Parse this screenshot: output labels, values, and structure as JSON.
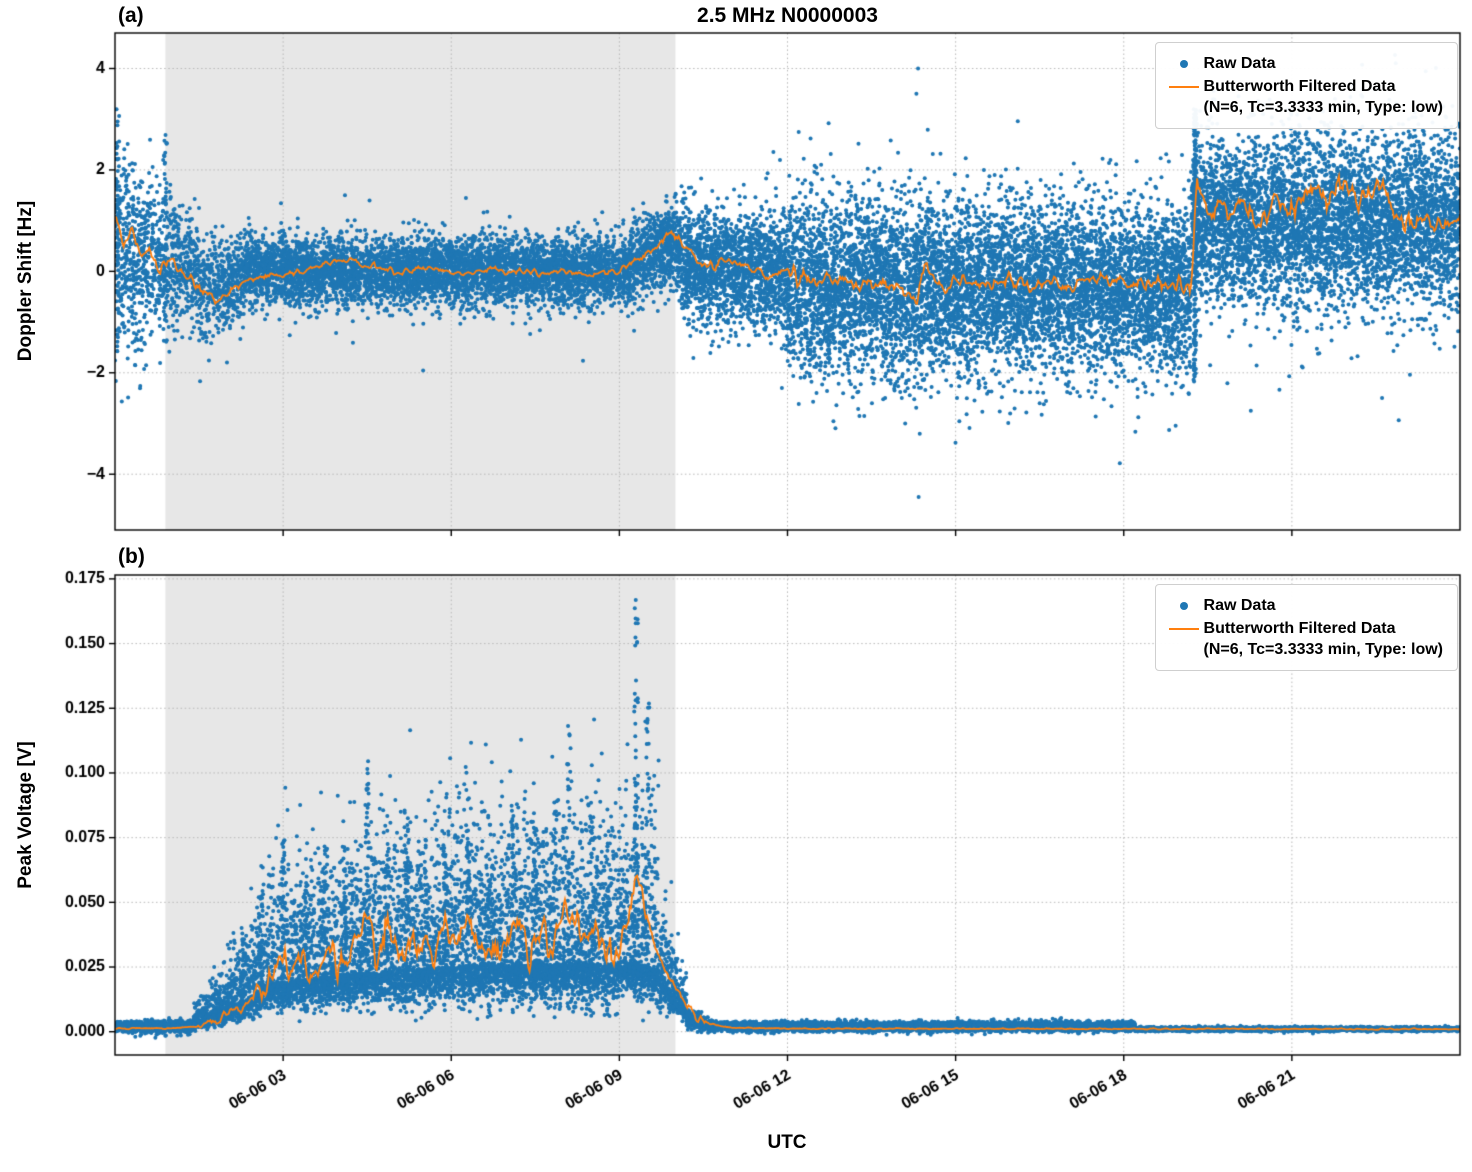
{
  "figure": {
    "xlabel": "UTC",
    "background": "#ffffff"
  },
  "chart_data": [
    {
      "type": "scatter",
      "panel_label": "(a)",
      "title": "2.5 MHz N0000003",
      "ylabel": "Doppler Shift [Hz]",
      "ylim": [
        -5.1,
        4.7
      ],
      "yticks": [
        -4,
        -2,
        0,
        2,
        4
      ],
      "ytick_labels": [
        "−4",
        "−2",
        "0",
        "2",
        "4"
      ],
      "xlim": [
        0,
        24
      ],
      "x_unit": "hours after 06-06 00:00 UTC",
      "xticks": [
        {
          "h": 3,
          "label": "06-06 03"
        },
        {
          "h": 6,
          "label": "06-06 06"
        },
        {
          "h": 9,
          "label": "06-06 09"
        },
        {
          "h": 12,
          "label": "06-06 12"
        },
        {
          "h": 15,
          "label": "06-06 15"
        },
        {
          "h": 18,
          "label": "06-06 18"
        },
        {
          "h": 21,
          "label": "06-06 21"
        }
      ],
      "show_xtick_labels": false,
      "grid": "dotted",
      "legend_position": "upper right",
      "legend": {
        "raw": "Raw Data",
        "filtered_1": "Butterworth Filtered Data",
        "filtered_2": "(N=6, Tc=3.3333 min, Type: low)"
      },
      "colors": {
        "raw": "#1f77b4",
        "filtered": "#ff7f0e"
      },
      "shaded_region": {
        "from_h": 0.9,
        "to_h": 10.0,
        "color": "#e7e7e7"
      },
      "tail_fraction": 0.03,
      "tail_mult": 2.1,
      "raw_segments": [
        {
          "from": 0.0,
          "to": 0.7,
          "c0": 0.4,
          "c1": 0.2,
          "s0": 1.05,
          "s1": 0.8,
          "density": 650
        },
        {
          "from": 0.7,
          "to": 1.5,
          "c0": 0.2,
          "c1": -0.1,
          "s0": 0.75,
          "s1": 0.55,
          "density": 550
        },
        {
          "from": 1.5,
          "to": 2.3,
          "c0": -0.35,
          "c1": -0.2,
          "s0": 0.5,
          "s1": 0.4,
          "density": 550
        },
        {
          "from": 2.3,
          "to": 9.2,
          "c0": 0.0,
          "c1": 0.0,
          "s0": 0.33,
          "s1": 0.33,
          "density": 800
        },
        {
          "from": 9.2,
          "to": 10.1,
          "c0": 0.25,
          "c1": 0.55,
          "s0": 0.38,
          "s1": 0.42,
          "density": 800
        },
        {
          "from": 10.1,
          "to": 12.0,
          "c0": 0.15,
          "c1": -0.05,
          "s0": 0.55,
          "s1": 0.6,
          "density": 900
        },
        {
          "from": 12.0,
          "to": 19.2,
          "c0": -0.3,
          "c1": -0.35,
          "s0": 0.85,
          "s1": 0.8,
          "density": 1050
        },
        {
          "from": 19.2,
          "to": 24.0,
          "c0": 1.05,
          "c1": 0.95,
          "s0": 0.8,
          "s1": 0.85,
          "density": 1050
        }
      ],
      "columns": [
        {
          "h": 19.27,
          "y0": -2.3,
          "y1": 3.2,
          "n": 160
        },
        {
          "h": 0.05,
          "y0": -1.4,
          "y1": 3.25,
          "n": 60
        },
        {
          "h": 0.9,
          "y0": -1.0,
          "y1": 2.7,
          "n": 40
        }
      ],
      "outliers": [
        [
          14.33,
          4.0
        ],
        [
          14.3,
          3.5
        ],
        [
          14.36,
          -3.2
        ],
        [
          14.34,
          -4.45
        ],
        [
          13.37,
          -2.85
        ],
        [
          12.2,
          2.75
        ],
        [
          11.9,
          -2.3
        ],
        [
          16.5,
          -2.6
        ],
        [
          15.2,
          -2.5
        ],
        [
          14.1,
          -3.0
        ],
        [
          12.6,
          2.1
        ]
      ],
      "filtered_keypoints": [
        [
          0,
          1.2
        ],
        [
          0.15,
          0.55
        ],
        [
          0.3,
          0.85
        ],
        [
          0.45,
          0.3
        ],
        [
          0.6,
          0.45
        ],
        [
          0.8,
          0.05
        ],
        [
          1.0,
          0.3
        ],
        [
          1.2,
          -0.05
        ],
        [
          1.5,
          -0.3
        ],
        [
          1.8,
          -0.55
        ],
        [
          2.0,
          -0.45
        ],
        [
          2.3,
          -0.2
        ],
        [
          2.7,
          -0.1
        ],
        [
          3.2,
          0.0
        ],
        [
          3.7,
          0.1
        ],
        [
          4.2,
          0.25
        ],
        [
          4.5,
          0.1
        ],
        [
          5.0,
          0.0
        ],
        [
          5.6,
          0.05
        ],
        [
          6.2,
          -0.05
        ],
        [
          6.8,
          0.02
        ],
        [
          7.4,
          -0.05
        ],
        [
          8.0,
          0.0
        ],
        [
          8.5,
          -0.08
        ],
        [
          9.0,
          0.0
        ],
        [
          9.4,
          0.3
        ],
        [
          9.7,
          0.55
        ],
        [
          9.95,
          0.8
        ],
        [
          10.15,
          0.5
        ],
        [
          10.4,
          0.2
        ],
        [
          10.7,
          0.1
        ],
        [
          11.0,
          0.25
        ],
        [
          11.3,
          0.05
        ],
        [
          11.7,
          -0.1
        ],
        [
          12.0,
          0.05
        ],
        [
          12.4,
          -0.25
        ],
        [
          12.8,
          -0.1
        ],
        [
          13.2,
          -0.3
        ],
        [
          13.6,
          -0.15
        ],
        [
          14.0,
          -0.35
        ],
        [
          14.3,
          -0.6
        ],
        [
          14.5,
          0.15
        ],
        [
          14.7,
          -0.45
        ],
        [
          15.0,
          -0.2
        ],
        [
          15.4,
          -0.3
        ],
        [
          15.8,
          -0.15
        ],
        [
          16.2,
          -0.3
        ],
        [
          16.6,
          -0.2
        ],
        [
          17.0,
          -0.3
        ],
        [
          17.4,
          -0.15
        ],
        [
          17.8,
          -0.25
        ],
        [
          18.2,
          -0.2
        ],
        [
          18.6,
          -0.25
        ],
        [
          19.0,
          -0.2
        ],
        [
          19.2,
          -0.5
        ],
        [
          19.3,
          1.9
        ],
        [
          19.5,
          1.0
        ],
        [
          19.7,
          1.5
        ],
        [
          19.9,
          1.05
        ],
        [
          20.1,
          1.35
        ],
        [
          20.4,
          0.95
        ],
        [
          20.7,
          1.5
        ],
        [
          21.0,
          1.15
        ],
        [
          21.3,
          1.65
        ],
        [
          21.6,
          1.35
        ],
        [
          21.9,
          1.75
        ],
        [
          22.2,
          1.35
        ],
        [
          22.5,
          1.8
        ],
        [
          22.8,
          1.25
        ],
        [
          23.1,
          0.9
        ],
        [
          23.4,
          1.15
        ],
        [
          23.7,
          0.85
        ],
        [
          24,
          1.0
        ]
      ],
      "filtered_wiggle": [
        {
          "from": 0,
          "to": 2.3,
          "amp": 0.1
        },
        {
          "from": 2.3,
          "to": 9.2,
          "amp": 0.05
        },
        {
          "from": 9.2,
          "to": 12,
          "amp": 0.08
        },
        {
          "from": 12,
          "to": 19.2,
          "amp": 0.13
        },
        {
          "from": 19.2,
          "to": 24,
          "amp": 0.2
        }
      ]
    },
    {
      "type": "scatter",
      "panel_label": "(b)",
      "ylabel": "Peak Voltage [V]",
      "ylim": [
        -0.009,
        0.1765
      ],
      "yticks": [
        0,
        0.025,
        0.05,
        0.075,
        0.1,
        0.125,
        0.15,
        0.175
      ],
      "ytick_labels": [
        "0.000",
        "0.025",
        "0.050",
        "0.075",
        "0.100",
        "0.125",
        "0.150",
        "0.175"
      ],
      "xlim": [
        0,
        24
      ],
      "x_unit": "hours after 06-06 00:00 UTC",
      "xticks": [
        {
          "h": 3,
          "label": "06-06 03"
        },
        {
          "h": 6,
          "label": "06-06 06"
        },
        {
          "h": 9,
          "label": "06-06 09"
        },
        {
          "h": 12,
          "label": "06-06 12"
        },
        {
          "h": 15,
          "label": "06-06 15"
        },
        {
          "h": 18,
          "label": "06-06 18"
        },
        {
          "h": 21,
          "label": "06-06 21"
        }
      ],
      "show_xtick_labels": true,
      "grid": "dotted",
      "legend_position": "upper right",
      "legend": {
        "raw": "Raw Data",
        "filtered_1": "Butterworth Filtered Data",
        "filtered_2": "(N=6, Tc=3.3333 min, Type: low)"
      },
      "colors": {
        "raw": "#1f77b4",
        "filtered": "#ff7f0e"
      },
      "shaded_region": {
        "from_h": 0.9,
        "to_h": 10.0,
        "color": "#e7e7e7"
      },
      "tail_fraction": 0.0,
      "tail_mult": 1.0,
      "raw_segments": [
        {
          "from": 0.0,
          "to": 1.4,
          "c0": 0.002,
          "c1": 0.002,
          "s0": 0.001,
          "s1": 0.0012,
          "density": 600
        },
        {
          "from": 1.4,
          "to": 2.0,
          "c0": 0.003,
          "c1": 0.008,
          "s0": 0.0015,
          "s1": 0.004,
          "density": 700,
          "pos": 2.0,
          "neg": 0.6
        },
        {
          "from": 2.0,
          "to": 2.6,
          "c0": 0.008,
          "c1": 0.016,
          "s0": 0.004,
          "s1": 0.008,
          "density": 800,
          "pos": 2.2,
          "neg": 0.6
        },
        {
          "from": 2.6,
          "to": 4.0,
          "c0": 0.018,
          "c1": 0.022,
          "s0": 0.008,
          "s1": 0.01,
          "density": 900,
          "pos": 2.4,
          "neg": 0.55
        },
        {
          "from": 4.0,
          "to": 6.5,
          "c0": 0.022,
          "c1": 0.026,
          "s0": 0.01,
          "s1": 0.012,
          "density": 950,
          "pos": 2.4,
          "neg": 0.55
        },
        {
          "from": 6.5,
          "to": 9.0,
          "c0": 0.026,
          "c1": 0.026,
          "s0": 0.011,
          "s1": 0.012,
          "density": 950,
          "pos": 2.4,
          "neg": 0.55
        },
        {
          "from": 9.0,
          "to": 9.7,
          "c0": 0.028,
          "c1": 0.024,
          "s0": 0.012,
          "s1": 0.012,
          "density": 900,
          "pos": 2.6,
          "neg": 0.5
        },
        {
          "from": 9.7,
          "to": 10.2,
          "c0": 0.02,
          "c1": 0.007,
          "s0": 0.008,
          "s1": 0.003,
          "density": 800,
          "pos": 2.0,
          "neg": 0.5
        },
        {
          "from": 10.2,
          "to": 10.7,
          "c0": 0.005,
          "c1": 0.002,
          "s0": 0.002,
          "s1": 0.001,
          "density": 700
        },
        {
          "from": 10.7,
          "to": 18.2,
          "c0": 0.002,
          "c1": 0.002,
          "s0": 0.0009,
          "s1": 0.0009,
          "density": 650
        },
        {
          "from": 18.2,
          "to": 24.0,
          "c0": 0.001,
          "c1": 0.001,
          "s0": 0.0004,
          "s1": 0.0004,
          "density": 500
        }
      ],
      "plumes": [
        {
          "h": 2.3,
          "top": 0.04,
          "n": 20
        },
        {
          "h": 2.6,
          "top": 0.05,
          "n": 25
        },
        {
          "h": 3.0,
          "top": 0.075,
          "n": 40
        },
        {
          "h": 3.4,
          "top": 0.06,
          "n": 30
        },
        {
          "h": 3.75,
          "top": 0.072,
          "n": 35
        },
        {
          "h": 4.1,
          "top": 0.065,
          "n": 30
        },
        {
          "h": 4.5,
          "top": 0.105,
          "n": 45
        },
        {
          "h": 4.85,
          "top": 0.07,
          "n": 30
        },
        {
          "h": 5.2,
          "top": 0.09,
          "n": 40
        },
        {
          "h": 5.55,
          "top": 0.075,
          "n": 30
        },
        {
          "h": 5.9,
          "top": 0.068,
          "n": 28
        },
        {
          "h": 6.3,
          "top": 0.092,
          "n": 40
        },
        {
          "h": 6.7,
          "top": 0.07,
          "n": 30
        },
        {
          "h": 7.1,
          "top": 0.088,
          "n": 35
        },
        {
          "h": 7.5,
          "top": 0.08,
          "n": 32
        },
        {
          "h": 7.85,
          "top": 0.095,
          "n": 38
        },
        {
          "h": 8.1,
          "top": 0.12,
          "n": 45
        },
        {
          "h": 8.5,
          "top": 0.085,
          "n": 30
        },
        {
          "h": 8.8,
          "top": 0.075,
          "n": 28
        },
        {
          "h": 9.3,
          "top": 0.167,
          "n": 60
        },
        {
          "h": 9.5,
          "top": 0.13,
          "n": 40
        }
      ],
      "filtered_keypoints": [
        [
          0,
          0.0012
        ],
        [
          1.0,
          0.0013
        ],
        [
          1.5,
          0.002
        ],
        [
          1.9,
          0.005
        ],
        [
          2.2,
          0.009
        ],
        [
          2.5,
          0.013
        ],
        [
          2.8,
          0.02
        ],
        [
          3.0,
          0.03
        ],
        [
          3.15,
          0.022
        ],
        [
          3.4,
          0.028
        ],
        [
          3.6,
          0.022
        ],
        [
          3.8,
          0.032
        ],
        [
          4.0,
          0.026
        ],
        [
          4.2,
          0.03
        ],
        [
          4.5,
          0.048
        ],
        [
          4.65,
          0.03
        ],
        [
          4.9,
          0.04
        ],
        [
          5.1,
          0.027
        ],
        [
          5.3,
          0.037
        ],
        [
          5.6,
          0.029
        ],
        [
          5.9,
          0.04
        ],
        [
          6.1,
          0.03
        ],
        [
          6.3,
          0.048
        ],
        [
          6.5,
          0.033
        ],
        [
          6.8,
          0.028
        ],
        [
          7.0,
          0.037
        ],
        [
          7.2,
          0.044
        ],
        [
          7.4,
          0.03
        ],
        [
          7.6,
          0.041
        ],
        [
          7.8,
          0.034
        ],
        [
          8.0,
          0.048
        ],
        [
          8.2,
          0.04
        ],
        [
          8.4,
          0.035
        ],
        [
          8.6,
          0.039
        ],
        [
          8.8,
          0.03
        ],
        [
          9.0,
          0.035
        ],
        [
          9.15,
          0.042
        ],
        [
          9.3,
          0.063
        ],
        [
          9.45,
          0.048
        ],
        [
          9.6,
          0.034
        ],
        [
          9.8,
          0.024
        ],
        [
          10.0,
          0.017
        ],
        [
          10.3,
          0.008
        ],
        [
          10.6,
          0.003
        ],
        [
          11.0,
          0.0015
        ],
        [
          12.0,
          0.0012
        ],
        [
          24,
          0.001
        ]
      ],
      "filtered_wiggle": [
        {
          "from": 0,
          "to": 1.5,
          "amp": 0.0002
        },
        {
          "from": 1.5,
          "to": 2.5,
          "amp": 0.002
        },
        {
          "from": 2.5,
          "to": 9.5,
          "amp": 0.005
        },
        {
          "from": 9.5,
          "to": 10.5,
          "amp": 0.0015
        },
        {
          "from": 10.5,
          "to": 24,
          "amp": 0.0002
        }
      ]
    }
  ]
}
